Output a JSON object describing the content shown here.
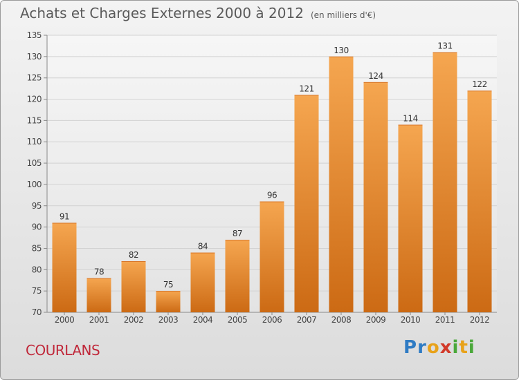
{
  "title": "Achats et Charges Externes 2000 à 2012",
  "unit": "(en milliers d'€)",
  "commune": "COURLANS",
  "logo": {
    "letters": [
      {
        "ch": "P",
        "color": "#2e7bc4"
      },
      {
        "ch": "r",
        "color": "#2e7bc4"
      },
      {
        "ch": "o",
        "color": "#e8a21a"
      },
      {
        "ch": "x",
        "color": "#d23a2a"
      },
      {
        "ch": "i",
        "color": "#4aa83a"
      },
      {
        "ch": "t",
        "color": "#e8a21a"
      },
      {
        "ch": "i",
        "color": "#4aa83a"
      }
    ]
  },
  "chart_data": {
    "type": "bar",
    "title": "Achats et Charges Externes 2000 à 2012",
    "subtitle": "(en milliers d'€)",
    "xlabel": "",
    "ylabel": "",
    "categories": [
      "2000",
      "2001",
      "2002",
      "2003",
      "2004",
      "2005",
      "2006",
      "2007",
      "2008",
      "2009",
      "2010",
      "2011",
      "2012"
    ],
    "values": [
      91,
      78,
      82,
      75,
      84,
      87,
      96,
      121,
      130,
      124,
      114,
      131,
      122
    ],
    "ylim": [
      70,
      135
    ],
    "yticks": [
      70,
      75,
      80,
      85,
      90,
      95,
      100,
      105,
      110,
      115,
      120,
      125,
      130,
      135
    ],
    "grid": true,
    "bar_color_top": "#f5a650",
    "bar_color_bottom": "#cc6a14"
  }
}
